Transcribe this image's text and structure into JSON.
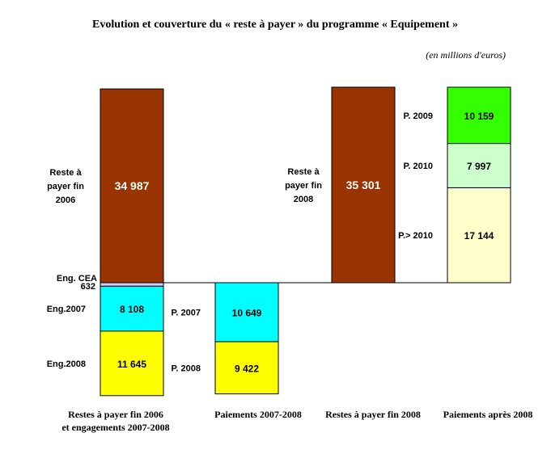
{
  "chart_data": {
    "type": "bar",
    "title": "Evolution et couverture du « reste à payer » du programme « Equipement »",
    "unit_note": "(en millions d'euros)",
    "categories": [
      [
        "Restes à payer fin 2006",
        "et engagements 2007-2008"
      ],
      [
        "Paiements 2007-2008"
      ],
      [
        "Restes à payer fin 2008"
      ],
      [
        "Paiements après 2008"
      ]
    ],
    "columns": [
      {
        "category_index": 0,
        "segments": [
          {
            "name": "Reste à payer fin 2006",
            "value": 34987,
            "display": "34 987",
            "color": "#993300",
            "text_color": "#ffffff",
            "direction": "up",
            "side_label": [
              "Reste à",
              "payer fin",
              "2006"
            ]
          },
          {
            "name": "Eng. CEA",
            "value": 632,
            "display": "",
            "color": "#ccccff",
            "text_color": "#000000",
            "direction": "down",
            "side_label": [
              "Eng. CEA",
              "632"
            ],
            "small": true
          },
          {
            "name": "Eng.2007",
            "value": 8108,
            "display": "8 108",
            "color": "#00ffff",
            "text_color": "#000000",
            "direction": "down",
            "side_label": [
              "Eng.2007"
            ]
          },
          {
            "name": "Eng.2008",
            "value": 11645,
            "display": "11 645",
            "color": "#ffff00",
            "text_color": "#000000",
            "direction": "down",
            "side_label": [
              "Eng.2008"
            ]
          }
        ]
      },
      {
        "category_index": 1,
        "segments": [
          {
            "name": "P. 2007",
            "value": 10649,
            "display": "10 649",
            "color": "#00ffff",
            "text_color": "#000000",
            "direction": "down",
            "side_label": [
              "P. 2007"
            ]
          },
          {
            "name": "P. 2008",
            "value": 9422,
            "display": "9 422",
            "color": "#ffff00",
            "text_color": "#000000",
            "direction": "down",
            "side_label": [
              "P. 2008"
            ]
          }
        ]
      },
      {
        "category_index": 2,
        "segments": [
          {
            "name": "Reste à payer fin 2008",
            "value": 35301,
            "display": "35 301",
            "color": "#993300",
            "text_color": "#ffffff",
            "direction": "up",
            "side_label": [
              "Reste à",
              "payer fin",
              "2008"
            ]
          }
        ]
      },
      {
        "category_index": 3,
        "segments": [
          {
            "name": "P.> 2010",
            "value": 17144,
            "display": "17 144",
            "color": "#ffffcc",
            "text_color": "#000000",
            "direction": "up",
            "side_label": [
              "P.> 2010"
            ]
          },
          {
            "name": "P. 2010",
            "value": 7997,
            "display": "7 997",
            "color": "#ccffcc",
            "text_color": "#000000",
            "direction": "up",
            "side_label": [
              "P. 2010"
            ]
          },
          {
            "name": "P. 2009",
            "value": 10159,
            "display": "10 159",
            "color": "#33ff00",
            "text_color": "#000000",
            "direction": "up",
            "side_label": [
              "P. 2009"
            ]
          }
        ]
      }
    ],
    "baseline": 0,
    "ylim": [
      -20500,
      36000
    ],
    "grid": false,
    "legend": "none"
  }
}
